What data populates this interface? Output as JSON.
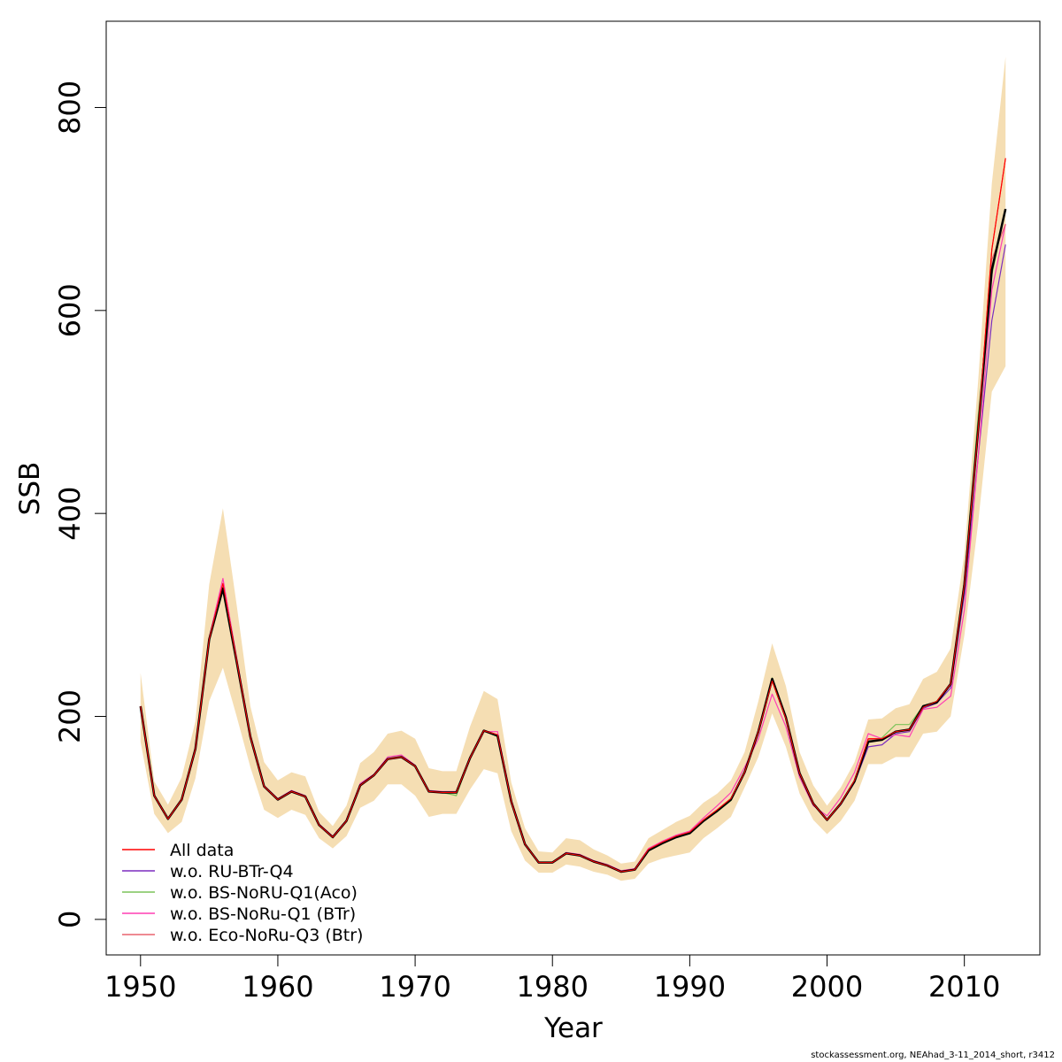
{
  "chart_data": {
    "type": "line",
    "xlabel": "Year",
    "ylabel": "SSB",
    "xlim": [
      1947.5,
      2015.5
    ],
    "ylim": [
      -35,
      885
    ],
    "x_ticks": [
      1950,
      1960,
      1970,
      1980,
      1990,
      2000,
      2010
    ],
    "y_ticks": [
      0,
      200,
      400,
      600,
      800
    ],
    "x": [
      1950,
      1951,
      1952,
      1953,
      1954,
      1955,
      1956,
      1957,
      1958,
      1959,
      1960,
      1961,
      1962,
      1963,
      1964,
      1965,
      1966,
      1967,
      1968,
      1969,
      1970,
      1971,
      1972,
      1973,
      1974,
      1975,
      1976,
      1977,
      1978,
      1979,
      1980,
      1981,
      1982,
      1983,
      1984,
      1985,
      1986,
      1987,
      1988,
      1989,
      1990,
      1991,
      1992,
      1993,
      1994,
      1995,
      1996,
      1997,
      1998,
      1999,
      2000,
      2001,
      2002,
      2003,
      2004,
      2005,
      2006,
      2007,
      2008,
      2009,
      2010,
      2011,
      2012,
      2013
    ],
    "band": {
      "color": "#f5deb3",
      "lower": [
        175,
        104,
        85,
        96,
        139,
        215,
        248,
        200,
        150,
        108,
        100,
        108,
        103,
        80,
        70,
        82,
        110,
        117,
        133,
        133,
        122,
        101,
        104,
        104,
        128,
        148,
        144,
        87,
        58,
        46,
        46,
        54,
        52,
        47,
        44,
        38,
        40,
        55,
        60,
        63,
        66,
        80,
        90,
        101,
        130,
        160,
        203,
        170,
        124,
        98,
        84,
        97,
        117,
        153,
        153,
        160,
        160,
        183,
        185,
        200,
        280,
        390,
        520,
        545
      ],
      "upper": [
        243,
        136,
        113,
        140,
        195,
        330,
        405,
        310,
        210,
        155,
        137,
        145,
        141,
        106,
        92,
        112,
        154,
        165,
        183,
        186,
        178,
        149,
        146,
        146,
        190,
        225,
        217,
        135,
        90,
        67,
        66,
        80,
        78,
        69,
        63,
        55,
        57,
        80,
        88,
        96,
        102,
        115,
        124,
        137,
        165,
        215,
        272,
        230,
        165,
        132,
        112,
        130,
        155,
        197,
        198,
        208,
        212,
        237,
        244,
        267,
        360,
        530,
        725,
        850
      ]
    },
    "series": [
      {
        "name": "All data",
        "color": "#ff0000",
        "values": [
          210,
          122,
          99,
          118,
          168,
          276,
          331,
          255,
          180,
          131,
          118,
          126,
          121,
          93,
          81,
          97,
          132,
          142,
          158,
          160,
          151,
          126,
          125,
          125,
          159,
          186,
          182,
          116,
          74,
          56,
          56,
          65,
          63,
          57,
          53,
          47,
          49,
          69,
          76,
          82,
          86,
          98,
          108,
          119,
          145,
          185,
          235,
          198,
          144,
          114,
          98,
          114,
          137,
          178,
          178,
          185,
          187,
          209,
          215,
          232,
          330,
          482,
          660,
          750
        ]
      },
      {
        "name": "w.o. RU-BTr-Q4",
        "color": "#7b2cbf",
        "values": [
          210,
          122,
          99,
          118,
          168,
          276,
          329,
          254,
          180,
          131,
          118,
          126,
          121,
          93,
          81,
          97,
          132,
          142,
          158,
          160,
          151,
          126,
          125,
          125,
          159,
          186,
          182,
          116,
          74,
          56,
          56,
          65,
          63,
          57,
          53,
          47,
          49,
          68,
          75,
          81,
          85,
          97,
          107,
          118,
          145,
          185,
          237,
          198,
          144,
          114,
          98,
          113,
          135,
          170,
          172,
          183,
          185,
          208,
          213,
          228,
          320,
          455,
          590,
          665
        ]
      },
      {
        "name": "w.o. BS-NoRU-Q1(Aco)",
        "color": "#7cc45a",
        "values": [
          210,
          122,
          99,
          118,
          168,
          276,
          326,
          253,
          180,
          131,
          118,
          126,
          121,
          93,
          81,
          97,
          132,
          142,
          158,
          160,
          151,
          126,
          125,
          122,
          159,
          186,
          180,
          116,
          74,
          56,
          56,
          65,
          63,
          57,
          53,
          47,
          49,
          68,
          75,
          81,
          85,
          97,
          106,
          117,
          145,
          185,
          238,
          200,
          144,
          114,
          98,
          114,
          136,
          176,
          179,
          192,
          192,
          210,
          215,
          232,
          335,
          495,
          635,
          700
        ]
      },
      {
        "name": "w.o. BS-NoRu-Q1 (BTr)",
        "color": "#ff3fb4",
        "values": [
          210,
          122,
          99,
          118,
          168,
          278,
          336,
          258,
          182,
          132,
          119,
          127,
          122,
          94,
          82,
          98,
          134,
          143,
          160,
          162,
          152,
          127,
          126,
          126,
          158,
          185,
          185,
          118,
          75,
          56,
          56,
          66,
          64,
          58,
          54,
          48,
          50,
          70,
          77,
          83,
          87,
          100,
          112,
          125,
          150,
          178,
          222,
          190,
          140,
          112,
          102,
          120,
          145,
          183,
          178,
          182,
          180,
          207,
          209,
          220,
          305,
          455,
          620,
          685
        ]
      },
      {
        "name": "w.o. Eco-NoRu-Q3 (Btr)",
        "color": "#e8646e",
        "values": [
          210,
          122,
          99,
          118,
          168,
          276,
          330,
          255,
          180,
          131,
          118,
          126,
          121,
          93,
          81,
          97,
          132,
          142,
          158,
          160,
          151,
          126,
          125,
          125,
          159,
          186,
          182,
          116,
          74,
          56,
          56,
          65,
          63,
          57,
          53,
          47,
          49,
          69,
          76,
          82,
          86,
          98,
          108,
          118,
          145,
          185,
          235,
          198,
          144,
          114,
          98,
          114,
          137,
          177,
          178,
          185,
          186,
          209,
          214,
          231,
          328,
          478,
          650,
          685
        ]
      }
    ],
    "baseline": {
      "color": "#000000",
      "values": [
        210,
        122,
        99,
        118,
        168,
        276,
        326,
        254,
        180,
        131,
        118,
        126,
        121,
        93,
        81,
        97,
        132,
        142,
        158,
        160,
        151,
        126,
        125,
        125,
        159,
        186,
        181,
        116,
        74,
        56,
        56,
        65,
        63,
        57,
        53,
        47,
        49,
        68,
        75,
        81,
        85,
        97,
        107,
        118,
        145,
        185,
        237,
        199,
        144,
        114,
        98,
        114,
        136,
        175,
        177,
        185,
        187,
        210,
        214,
        232,
        330,
        482,
        640,
        700
      ]
    },
    "legend_position": "bottom-left"
  },
  "footer": {
    "credit": "stockassessment.org, NEAhad_3-11_2014_short, r3412"
  }
}
